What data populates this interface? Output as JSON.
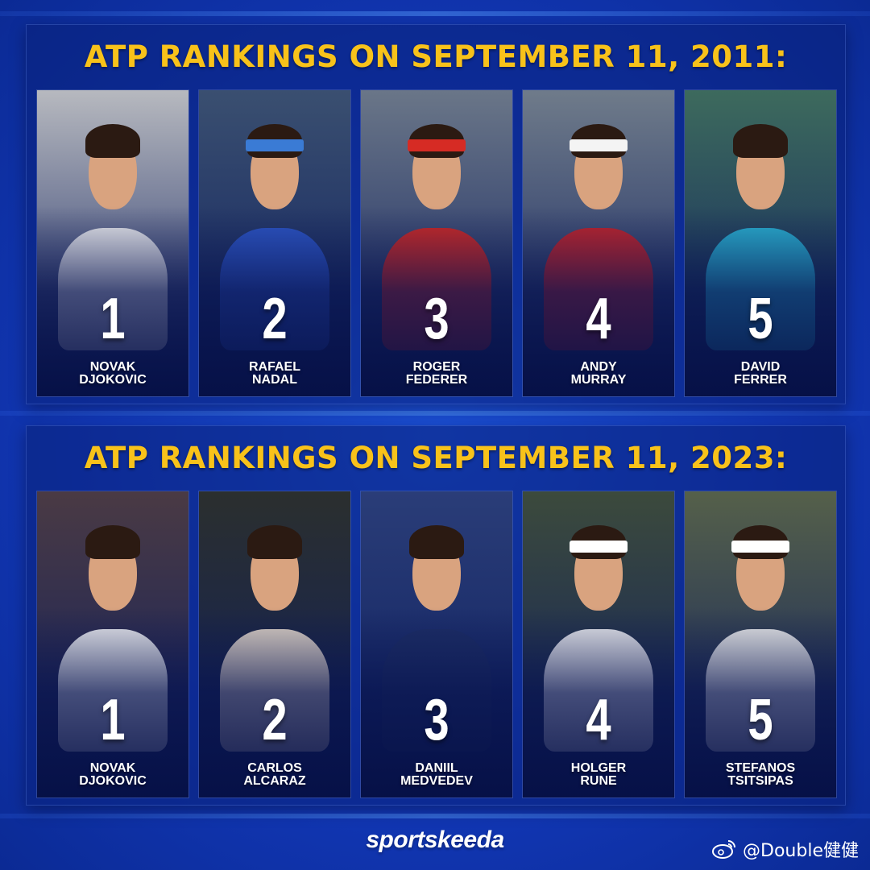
{
  "sections": [
    {
      "title": "ATP RANKINGS ON SEPTEMBER 11, 2011:",
      "players": [
        {
          "rank": "1",
          "first": "NOVAK",
          "last": "DJOKOVIC",
          "bg": "#b7b9bf",
          "shirt": "#f2f2f2",
          "band": ""
        },
        {
          "rank": "2",
          "first": "RAFAEL",
          "last": "NADAL",
          "bg": "#3a4f70",
          "shirt": "#2f58c9",
          "band": "#3a7bd5"
        },
        {
          "rank": "3",
          "first": "ROGER",
          "last": "FEDERER",
          "bg": "#6a7688",
          "shirt": "#d62b24",
          "band": "#d62b24"
        },
        {
          "rank": "4",
          "first": "ANDY",
          "last": "MURRAY",
          "bg": "#6f7b8a",
          "shirt": "#c9262a",
          "band": "#f4f4f4"
        },
        {
          "rank": "5",
          "first": "DAVID",
          "last": "FERRER",
          "bg": "#3d6a5d",
          "shirt": "#2cb7d6",
          "band": ""
        }
      ]
    },
    {
      "title": "ATP RANKINGS ON SEPTEMBER 11, 2023:",
      "players": [
        {
          "rank": "1",
          "first": "NOVAK",
          "last": "DJOKOVIC",
          "bg": "#4a3a44",
          "shirt": "#f5f5f5",
          "band": ""
        },
        {
          "rank": "2",
          "first": "CARLOS",
          "last": "ALCARAZ",
          "bg": "#2b2f2e",
          "shirt": "#e9dccb",
          "band": ""
        },
        {
          "rank": "3",
          "first": "DANIIL",
          "last": "MEDVEDEV",
          "bg": "#2a3d78",
          "shirt": "#1e2f66",
          "band": ""
        },
        {
          "rank": "4",
          "first": "HOLGER",
          "last": "RUNE",
          "bg": "#3c4a3c",
          "shirt": "#f4f4f4",
          "band": "#ffffff"
        },
        {
          "rank": "5",
          "first": "STEFANOS",
          "last": "TSITSIPAS",
          "bg": "#55604a",
          "shirt": "#f5f5f0",
          "band": "#ffffff"
        }
      ]
    }
  ],
  "footer": {
    "logo": "sportskeeda",
    "watermark": "@Double健健",
    "watermark_icon": "weibo-icon"
  },
  "colors": {
    "title": "#f8c21a",
    "background": "#1238b8"
  }
}
